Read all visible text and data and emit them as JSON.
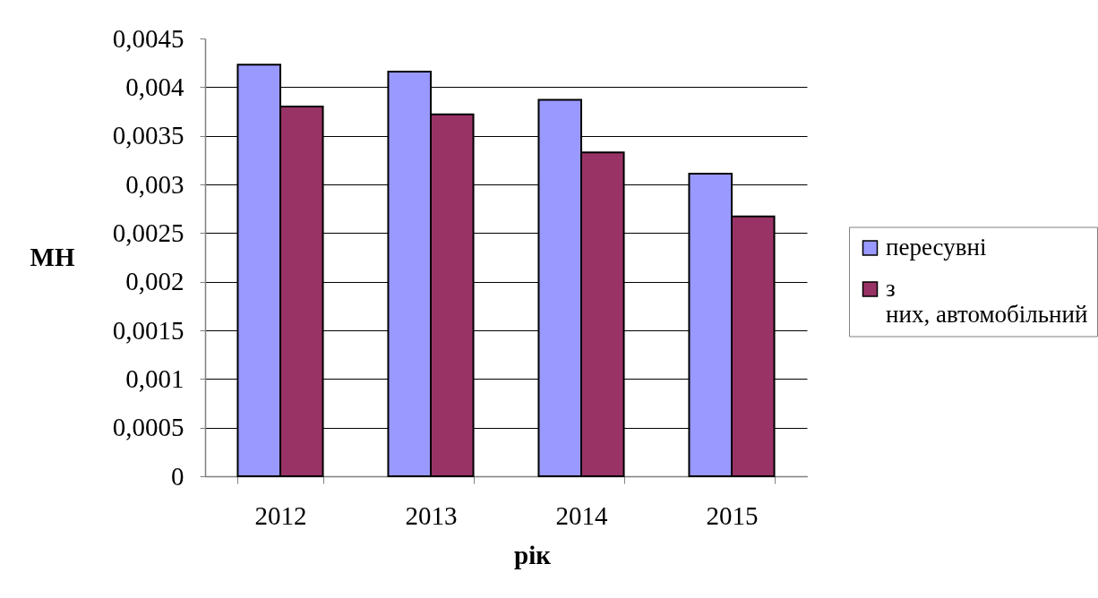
{
  "chart_data": {
    "type": "bar",
    "xlabel": "рік",
    "ylabel": "МН",
    "categories": [
      "2012",
      "2013",
      "2014",
      "2015"
    ],
    "series": [
      {
        "name": "пересувні",
        "color": "#9999ff",
        "values": [
          0.00423,
          0.00416,
          0.00387,
          0.00311
        ]
      },
      {
        "name": "з них, автомобільний",
        "color": "#993366",
        "values": [
          0.0038,
          0.00372,
          0.00333,
          0.00267
        ]
      }
    ],
    "ylim": [
      0,
      0.0045
    ],
    "yticks": [
      0,
      {
        "value": 0.0005,
        "label": "0,0005"
      },
      {
        "value": 0.001,
        "label": "0,001"
      },
      {
        "value": 0.0015,
        "label": "0,0015"
      },
      {
        "value": 0.002,
        "label": "0,002"
      },
      {
        "value": 0.0025,
        "label": "0,0025"
      },
      {
        "value": 0.003,
        "label": "0,003"
      },
      {
        "value": 0.0035,
        "label": "0,0035"
      },
      {
        "value": 0.004,
        "label": "0,004"
      },
      {
        "value": 0.0045,
        "label": "0,0045"
      }
    ],
    "grid": "y",
    "legend": "right"
  }
}
